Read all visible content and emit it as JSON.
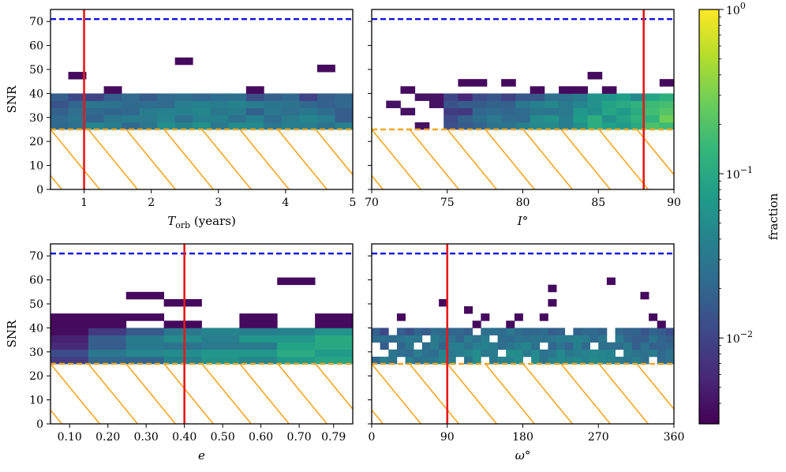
{
  "figure": {
    "colorbar": {
      "label": "fraction",
      "scale": "log",
      "vmin": 0.003,
      "vmax": 1,
      "tick_labels": [
        {
          "value": 1,
          "base": "10",
          "exp": "0"
        },
        {
          "value": 0.1,
          "base": "10",
          "exp": "−1"
        },
        {
          "value": 0.01,
          "base": "10",
          "exp": "−2"
        }
      ]
    },
    "colors": {
      "snr_threshold_line": "#f5a623",
      "snr_max_line": "#1010e0",
      "true_value_line": "#e81818",
      "hatch": "#f5a623",
      "frame": "#000000"
    }
  },
  "chart_data": [
    {
      "id": "torb",
      "type": "heatmap",
      "title": "",
      "xlabel": "T",
      "xlabel_sub": "orb",
      "xlabel_suffix": " (years)",
      "ylabel": "SNR",
      "xlim": [
        0.5,
        5
      ],
      "ylim": [
        0,
        75
      ],
      "xticks": [
        1,
        2,
        3,
        4,
        5
      ],
      "xtick_labels": [
        "1",
        "2",
        "3",
        "4",
        "5"
      ],
      "yticks": [
        0,
        10,
        20,
        30,
        40,
        50,
        60,
        70
      ],
      "ytick_labels": [
        "0",
        "10",
        "20",
        "30",
        "40",
        "50",
        "60",
        "70"
      ],
      "true_value": 1.0,
      "snr_threshold": 25,
      "snr_max": 71,
      "bins_x": 17,
      "bins_y": 26,
      "seed": 11
    },
    {
      "id": "incl",
      "type": "heatmap",
      "title": "",
      "xlabel": "I°",
      "ylabel": "",
      "xlim": [
        70,
        90
      ],
      "ylim": [
        0,
        75
      ],
      "xticks": [
        70,
        75,
        80,
        85,
        90
      ],
      "xtick_labels": [
        "70",
        "75",
        "80",
        "85",
        "90"
      ],
      "yticks": [
        0,
        10,
        20,
        30,
        40,
        50,
        60,
        70
      ],
      "ytick_labels": [],
      "true_value": 88,
      "snr_threshold": 25,
      "snr_max": 71,
      "bins_x": 21,
      "bins_y": 26,
      "seed": 23
    },
    {
      "id": "ecc",
      "type": "heatmap",
      "title": "",
      "xlabel": "e",
      "ylabel": "SNR",
      "xlim": [
        0.05,
        0.84
      ],
      "ylim": [
        0,
        75
      ],
      "xticks": [
        0.1,
        0.2,
        0.3,
        0.4,
        0.5,
        0.6,
        0.7,
        0.79
      ],
      "xtick_labels": [
        "0.10",
        "0.20",
        "0.30",
        "0.40",
        "0.50",
        "0.60",
        "0.70",
        "0.79"
      ],
      "yticks": [
        0,
        10,
        20,
        30,
        40,
        50,
        60,
        70
      ],
      "ytick_labels": [
        "0",
        "10",
        "20",
        "30",
        "40",
        "50",
        "60",
        "70"
      ],
      "true_value": 0.4,
      "snr_threshold": 25,
      "snr_max": 71,
      "bins_x": 8,
      "bins_y": 26,
      "seed": 37
    },
    {
      "id": "omega",
      "type": "heatmap",
      "title": "",
      "xlabel": "ω°",
      "ylabel": "",
      "xlim": [
        0,
        360
      ],
      "ylim": [
        0,
        75
      ],
      "xticks": [
        0,
        90,
        180,
        270,
        360
      ],
      "xtick_labels": [
        "0",
        "90",
        "180",
        "270",
        "360"
      ],
      "yticks": [
        0,
        10,
        20,
        30,
        40,
        50,
        60,
        70
      ],
      "ytick_labels": [],
      "true_value": 90,
      "snr_threshold": 25,
      "snr_max": 71,
      "bins_x": 36,
      "bins_y": 26,
      "seed": 53
    }
  ]
}
